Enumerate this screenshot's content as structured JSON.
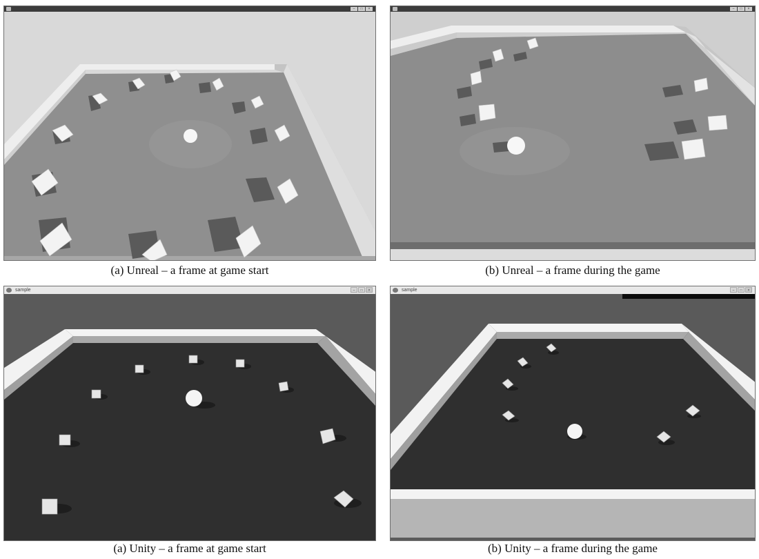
{
  "figures": [
    {
      "caption": "(a) Unreal – a frame at game start",
      "window": {
        "title_visible": false,
        "theme": "dark-titlebar"
      }
    },
    {
      "caption": "(b) Unreal – a frame during the game",
      "window": {
        "title_visible": false,
        "theme": "dark-titlebar"
      }
    },
    {
      "caption": "(a) Unity – a frame at game start",
      "window": {
        "title": "sample",
        "theme": "light-titlebar"
      }
    },
    {
      "caption": "(b) Unity – a frame during the game",
      "window": {
        "title": "sample",
        "theme": "light-titlebar"
      }
    }
  ],
  "colors": {
    "unreal_sky": "#d6d6d6",
    "unreal_floor": "#8e8e8e",
    "unreal_wall": "#e4e4e4",
    "unity_background": "#595959",
    "unity_floor": "#2f2f2f",
    "unity_wall_top": "#f2f2f2",
    "unity_wall_inner": "#a9a9a9",
    "cube": "#f4f4f4",
    "shadow": "#4a4a4a"
  }
}
